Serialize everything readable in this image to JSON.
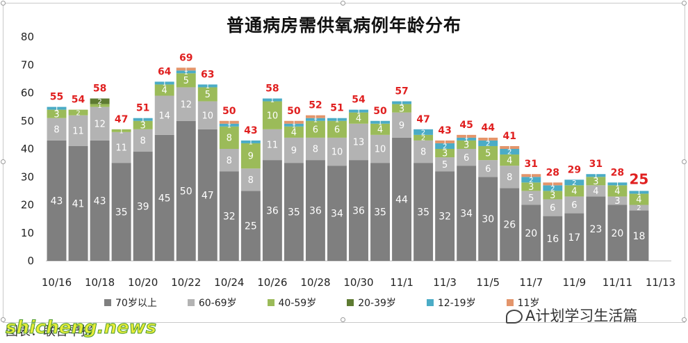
{
  "title": "普通病房需供氧病例年龄分布",
  "legend": {
    "items": [
      {
        "label": "70岁以上",
        "color": "#7f7f7f"
      },
      {
        "label": "60-69岁",
        "color": "#b3b3b3"
      },
      {
        "label": "40-59岁",
        "color": "#9bbb59"
      },
      {
        "label": "20-39岁",
        "color": "#5e7b32"
      },
      {
        "label": "12-19岁",
        "color": "#4bacc6"
      },
      {
        "label": "11岁",
        "color": "#e3956b"
      }
    ]
  },
  "footer": {
    "source": "图表：联合早报"
  },
  "watermarks": {
    "left": "shicheng.news",
    "right": "A计划学习生活篇"
  },
  "chart_data": {
    "type": "bar",
    "stacked": true,
    "title": "普通病房需供氧病例年龄分布",
    "ylim": [
      0,
      80
    ],
    "yticks": [
      0,
      10,
      20,
      30,
      40,
      50,
      60,
      70,
      80
    ],
    "categories": [
      "10/16",
      "10/17",
      "10/18",
      "10/19",
      "10/20",
      "10/21",
      "10/22",
      "10/23",
      "10/24",
      "10/25",
      "10/26",
      "10/27",
      "10/28",
      "10/29",
      "10/30",
      "10/31",
      "11/1",
      "11/2",
      "11/3",
      "11/4",
      "11/5",
      "11/6",
      "11/7",
      "11/8",
      "11/9",
      "11/10",
      "11/11",
      "11/12"
    ],
    "xtick_labels": [
      "10/16",
      "10/18",
      "10/20",
      "10/22",
      "10/24",
      "10/26",
      "10/28",
      "10/30",
      "11/1",
      "11/3",
      "11/5",
      "11/7",
      "11/9",
      "11/11",
      "11/13"
    ],
    "totals": [
      55,
      54,
      58,
      47,
      51,
      64,
      69,
      63,
      50,
      43,
      58,
      50,
      52,
      51,
      54,
      50,
      57,
      47,
      43,
      45,
      44,
      41,
      31,
      28,
      29,
      31,
      28,
      25
    ],
    "total_color": "#e02020",
    "series": [
      {
        "name": "70岁以上",
        "color": "#7f7f7f",
        "label_color": "#ffffff",
        "values": [
          43,
          41,
          43,
          35,
          39,
          45,
          50,
          47,
          32,
          25,
          36,
          35,
          36,
          34,
          36,
          35,
          44,
          35,
          32,
          34,
          30,
          26,
          20,
          16,
          17,
          23,
          20,
          18
        ]
      },
      {
        "name": "60-69岁",
        "color": "#b3b3b3",
        "label_color": "#ffffff",
        "values": [
          8,
          11,
          12,
          11,
          8,
          14,
          12,
          10,
          8,
          8,
          11,
          9,
          8,
          10,
          13,
          10,
          9,
          8,
          5,
          6,
          6,
          8,
          5,
          6,
          6,
          4,
          3,
          2
        ]
      },
      {
        "name": "40-59岁",
        "color": "#9bbb59",
        "label_color": "#ffffff",
        "values": [
          3,
          2,
          1,
          1,
          3,
          4,
          5,
          5,
          8,
          9,
          10,
          4,
          6,
          6,
          4,
          4,
          3,
          2,
          3,
          3,
          5,
          4,
          3,
          3,
          4,
          3,
          4,
          4
        ]
      },
      {
        "name": "20-39岁",
        "color": "#5e7b32",
        "label_color": "#ffffff",
        "values": [
          0,
          0,
          2,
          0,
          0,
          0,
          0,
          0,
          0,
          0,
          0,
          0,
          0,
          0,
          0,
          0,
          0,
          0,
          0,
          0,
          0,
          0,
          0,
          0,
          0,
          0,
          0,
          0
        ]
      },
      {
        "name": "12-19岁",
        "color": "#4bacc6",
        "label_color": "#ffffff",
        "values": [
          1,
          0,
          0,
          0,
          1,
          1,
          1,
          1,
          1,
          1,
          1,
          1,
          1,
          1,
          1,
          1,
          1,
          2,
          2,
          1,
          2,
          2,
          2,
          2,
          2,
          1,
          1,
          1
        ]
      },
      {
        "name": "11岁",
        "color": "#e3956b",
        "label_color": "#ffffff",
        "values": [
          0,
          0,
          0,
          0,
          0,
          0,
          1,
          0,
          1,
          0,
          0,
          1,
          1,
          0,
          0,
          0,
          0,
          0,
          1,
          1,
          1,
          1,
          1,
          1,
          0,
          0,
          0,
          0
        ]
      }
    ],
    "segment_labels": [
      [
        "43",
        "8",
        "3",
        "",
        "1",
        ""
      ],
      [
        "41",
        "11",
        "2",
        "",
        "",
        ""
      ],
      [
        "43",
        "12",
        "1",
        "2",
        "",
        ""
      ],
      [
        "35",
        "11",
        "1",
        "",
        "",
        ""
      ],
      [
        "39",
        "8",
        "3",
        "",
        "1",
        ""
      ],
      [
        "45",
        "14",
        "4",
        "",
        "1",
        ""
      ],
      [
        "50",
        "12",
        "5",
        "",
        "1",
        "1"
      ],
      [
        "47",
        "10",
        "5",
        "",
        "1",
        ""
      ],
      [
        "32",
        "8",
        "8",
        "",
        "1",
        "1"
      ],
      [
        "25",
        "8",
        "9",
        "",
        "1",
        ""
      ],
      [
        "36",
        "11",
        "10",
        "",
        "1",
        ""
      ],
      [
        "35",
        "9",
        "4",
        "",
        "1",
        "1"
      ],
      [
        "36",
        "8",
        "6",
        "",
        "1",
        "1"
      ],
      [
        "34",
        "10",
        "6",
        "",
        "1",
        ""
      ],
      [
        "36",
        "13",
        "4",
        "",
        "1",
        ""
      ],
      [
        "35",
        "10",
        "4",
        "",
        "1",
        ""
      ],
      [
        "44",
        "9",
        "3",
        "",
        "1",
        ""
      ],
      [
        "35",
        "8",
        "2",
        "",
        "2",
        ""
      ],
      [
        "32",
        "5",
        "3",
        "",
        "2",
        "1"
      ],
      [
        "34",
        "6",
        "3",
        "",
        "1",
        "1"
      ],
      [
        "30",
        "6",
        "5",
        "",
        "2",
        "1"
      ],
      [
        "26",
        "8",
        "4",
        "",
        "2",
        "1"
      ],
      [
        "20",
        "5",
        "3",
        "",
        "2",
        "1"
      ],
      [
        "16",
        "6",
        "3",
        "",
        "2",
        "1"
      ],
      [
        "17",
        "6",
        "4",
        "",
        "2",
        ""
      ],
      [
        "23",
        "4",
        "3",
        "",
        "1",
        ""
      ],
      [
        "20",
        "3",
        "4",
        "",
        "1",
        ""
      ],
      [
        "18",
        "2",
        "4",
        "",
        "1",
        ""
      ]
    ]
  }
}
